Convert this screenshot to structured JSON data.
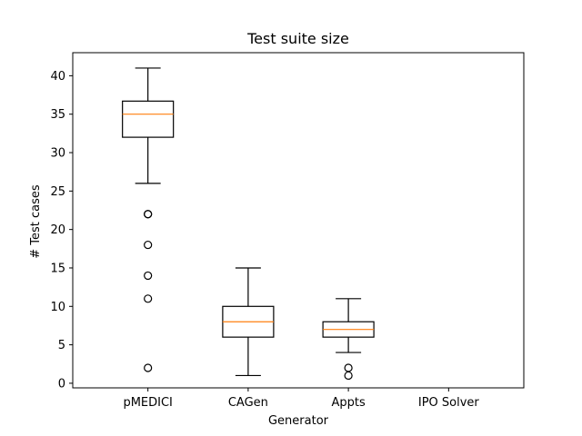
{
  "chart_data": {
    "type": "box",
    "title": "Test suite size",
    "xlabel": "Generator",
    "ylabel": "# Test cases",
    "categories": [
      "pMEDICI",
      "CAGen",
      "Appts",
      "IPO Solver"
    ],
    "ylim": [
      -0.6,
      43
    ],
    "yticks": [
      0,
      5,
      10,
      15,
      20,
      25,
      30,
      35,
      40
    ],
    "grid": false,
    "series": [
      {
        "name": "pMEDICI",
        "whisker_low": 26,
        "q1": 32,
        "median": 35,
        "q3": 36.7,
        "whisker_high": 41,
        "outliers": [
          22,
          22,
          18,
          14,
          11,
          2
        ]
      },
      {
        "name": "CAGen",
        "whisker_low": 1,
        "q1": 6,
        "median": 8,
        "q3": 10,
        "whisker_high": 15,
        "outliers": []
      },
      {
        "name": "Appts",
        "whisker_low": 4,
        "q1": 6,
        "median": 7,
        "q3": 8,
        "whisker_high": 11,
        "outliers": [
          2,
          1
        ]
      },
      {
        "name": "IPO Solver",
        "whisker_low": null,
        "q1": null,
        "median": null,
        "q3": null,
        "whisker_high": null,
        "outliers": []
      }
    ],
    "colors": {
      "box": "#000000",
      "median": "#ff7f0e",
      "outlier": "#000000"
    }
  }
}
